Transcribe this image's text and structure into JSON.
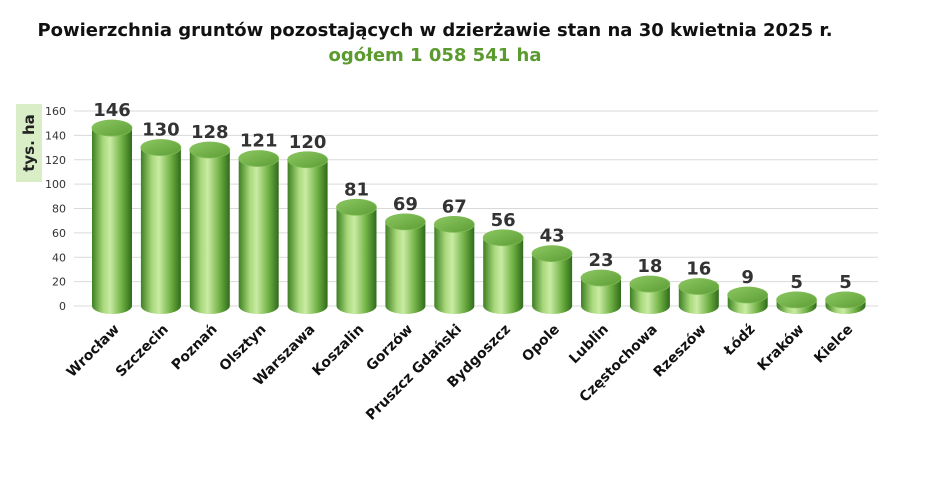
{
  "chart_data": {
    "type": "bar",
    "title": "Powierzchnia gruntów pozostających w dzierżawie stan na 30 kwietnia 2025 r.",
    "subtitle": "ogółem 1 058 541 ha",
    "ylabel": "tys. ha",
    "xlabel": "",
    "ylim": [
      0,
      160
    ],
    "yticks": [
      0,
      20,
      40,
      60,
      80,
      100,
      120,
      140,
      160
    ],
    "grid": true,
    "categories": [
      "Wrocław",
      "Szczecin",
      "Poznań",
      "Olsztyn",
      "Warszawa",
      "Koszalin",
      "Gorzów",
      "Pruszcz Gdański",
      "Bydgoszcz",
      "Opole",
      "Lublin",
      "Częstochowa",
      "Rzeszów",
      "Łódź",
      "Kraków",
      "Kielce"
    ],
    "values": [
      146,
      130,
      128,
      121,
      120,
      81,
      69,
      67,
      56,
      43,
      23,
      18,
      16,
      9,
      5,
      5
    ],
    "colors": {
      "bar_light": "#c9eba3",
      "bar_mid": "#6fb043",
      "bar_dark": "#2f6b1a",
      "subtitle": "#5a9a2f",
      "unit_bg": "#d9edc6"
    }
  }
}
